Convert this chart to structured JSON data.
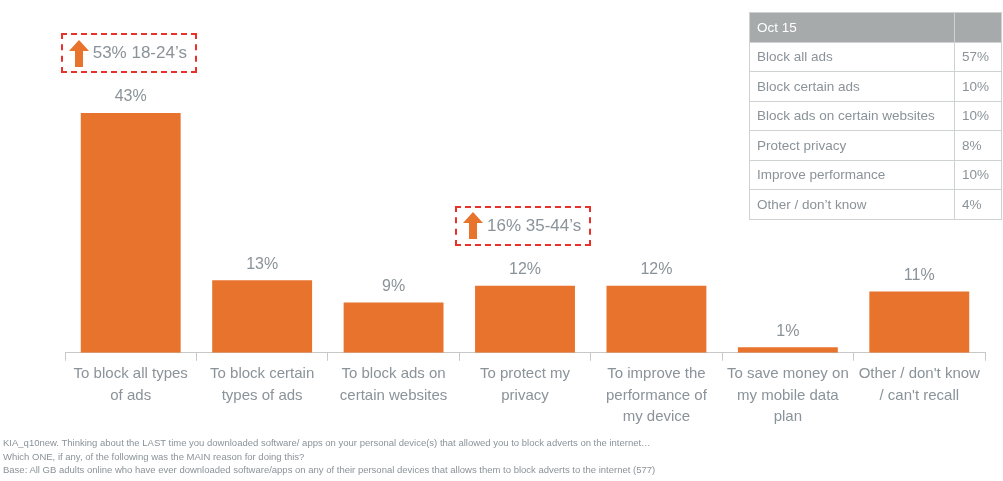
{
  "chart_data": [
    {
      "type": "bar",
      "categories": [
        "To block all types of ads",
        "To block certain types of ads",
        "To block ads on certain websites",
        "To protect my privacy",
        "To improve the performance of my device",
        "To save money on my mobile data plan",
        "Other / don't know / can't recall"
      ],
      "values": [
        43,
        13,
        9,
        12,
        12,
        1,
        11
      ],
      "value_labels": [
        "43%",
        "13%",
        "9%",
        "12%",
        "12%",
        "1%",
        "11%"
      ],
      "color": "#e8732c",
      "grid": false,
      "legend": false,
      "tick_labels": "x",
      "annotations": [
        "53% 18-24’s",
        "16% 35-44’s",
        "KIA_q10new. Thinking about the LAST time you downloaded software/ apps on your personal device(s) that allowed you to block adverts on the internet…",
        "Which ONE, if any, of the following was the MAIN reason for doing this?",
        "Base: All GB adults online who have ever downloaded software/apps on any of their personal devices that allows them to block adverts to the internet (577)"
      ]
    },
    {
      "type": "other",
      "title": "Oct 15",
      "categories": [
        "Block all ads",
        "Block certain ads",
        "Block ads on certain websites",
        "Protect privacy",
        "Improve performance",
        "Other / don’t know"
      ],
      "values": [
        57,
        10,
        10,
        8,
        10,
        4
      ],
      "value_labels": [
        "57%",
        "10%",
        "10%",
        "8%",
        "10%",
        "4%"
      ]
    }
  ]
}
